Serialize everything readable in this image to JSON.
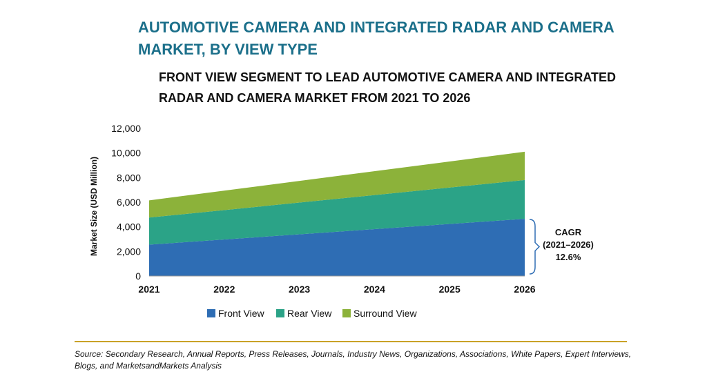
{
  "title": "AUTOMOTIVE CAMERA AND INTEGRATED RADAR AND CAMERA MARKET, BY VIEW TYPE",
  "subtitle": "FRONT VIEW SEGMENT TO LEAD AUTOMOTIVE CAMERA AND INTEGRATED RADAR AND CAMERA MARKET FROM 2021 TO 2026",
  "source": "Source: Secondary Research, Annual Reports, Press Releases, Journals, Industry News, Organizations, Associations, White Papers, Expert Interviews, Blogs, and MarketsandMarkets Analysis",
  "cagr": {
    "line1": "CAGR",
    "line2": "(2021–2026)",
    "value": "12.6%"
  },
  "colors": {
    "front_view": "#2e6db4",
    "rear_view": "#2ba387",
    "surround_view": "#8cb23a",
    "title": "#1b6f8a",
    "bracket": "#2e6db4",
    "source_rule": "#c9a227"
  },
  "chart_data": {
    "type": "area",
    "stacked": true,
    "x": [
      2021,
      2026
    ],
    "x_ticks": [
      "2021",
      "2022",
      "2023",
      "2024",
      "2025",
      "2026"
    ],
    "ylabel": "Market Size (USD Million)",
    "ylim": [
      0,
      12000
    ],
    "y_ticks": [
      "0",
      "2,000",
      "4,000",
      "6,000",
      "8,000",
      "10,000",
      "12,000"
    ],
    "y_tick_values": [
      0,
      2000,
      4000,
      6000,
      8000,
      10000,
      12000
    ],
    "grid": false,
    "legend_position": "bottom",
    "series": [
      {
        "name": "Front View",
        "values": [
          2550,
          4650
        ],
        "color": "#2e6db4"
      },
      {
        "name": "Rear View",
        "values": [
          2200,
          3150
        ],
        "color": "#2ba387"
      },
      {
        "name": "Surround View",
        "values": [
          1400,
          2300
        ],
        "color": "#8cb23a"
      }
    ]
  }
}
